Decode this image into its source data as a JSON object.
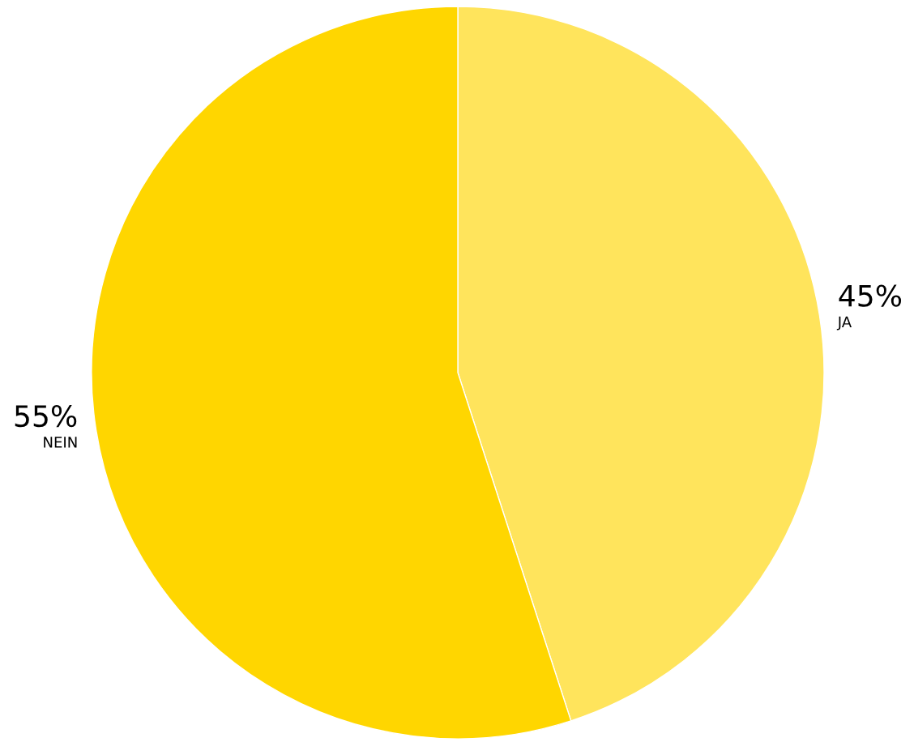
{
  "chart_data": {
    "type": "pie",
    "categories": [
      "JA",
      "NEIN"
    ],
    "values": [
      45,
      55
    ],
    "colors": [
      "#ffe45c",
      "#ffd600"
    ],
    "value_labels": [
      "45%",
      "55%"
    ]
  }
}
